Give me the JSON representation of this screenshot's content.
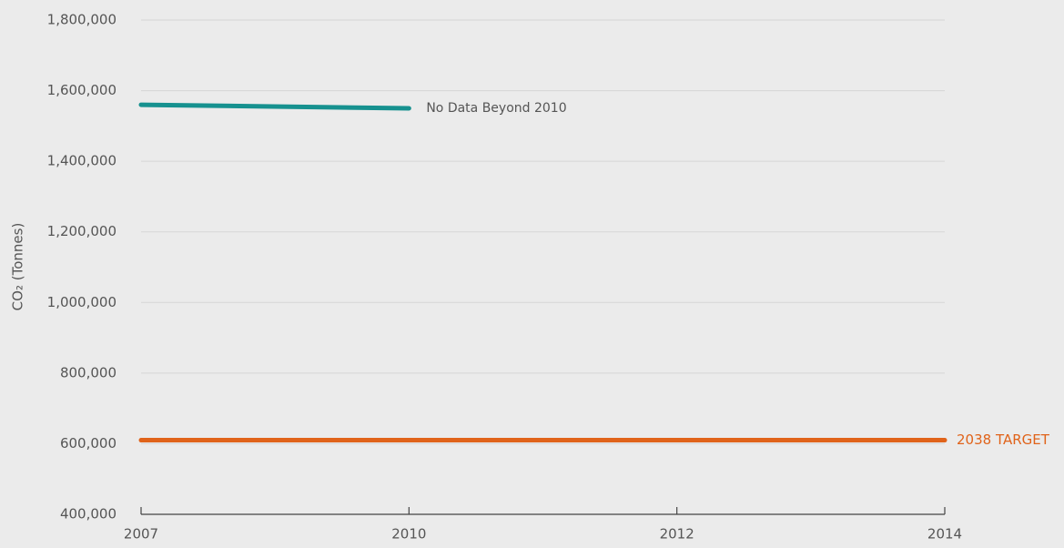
{
  "chart_data": {
    "type": "line",
    "y_label": "CO₂ (Tonnes)",
    "categories": [
      "2007",
      "2010",
      "2012",
      "2014"
    ],
    "series": [
      {
        "color": "#16918f",
        "values": [
          1560000,
          1550000,
          null,
          null
        ]
      },
      {
        "name": "2038 TARGET",
        "color": "#e0631a",
        "values": [
          610000,
          610000,
          610000,
          610000
        ]
      }
    ],
    "annotations": [
      {
        "text": "No Data Beyond 2010",
        "category": 1,
        "series": 0
      }
    ],
    "ylim": [
      400000,
      1800000
    ],
    "yticks": [
      {
        "value": 400000,
        "label": "400,000"
      },
      {
        "value": 600000,
        "label": "600,000"
      },
      {
        "value": 800000,
        "label": "800,000"
      },
      {
        "value": 1000000,
        "label": "1,000,000"
      },
      {
        "value": 1200000,
        "label": "1,200,000"
      },
      {
        "value": 1400000,
        "label": "1,400,000"
      },
      {
        "value": 1600000,
        "label": "1,600,000"
      },
      {
        "value": 1800000,
        "label": "1,800,000"
      }
    ],
    "grid": true
  }
}
